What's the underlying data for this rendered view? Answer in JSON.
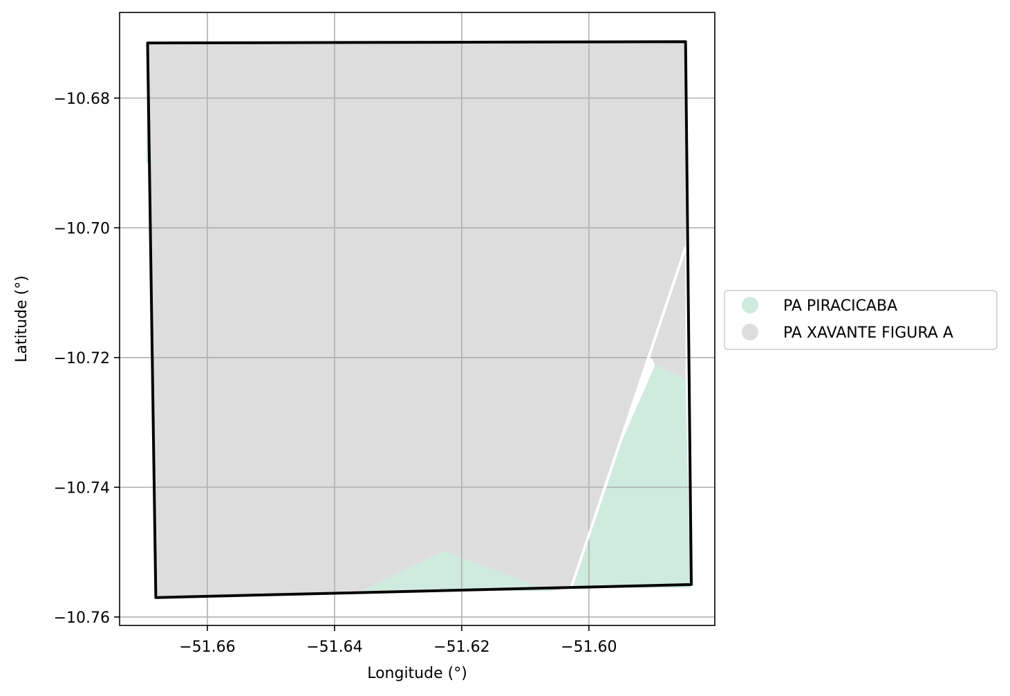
{
  "chart_data": {
    "type": "map",
    "title": "",
    "xlabel": "Longitude (°)",
    "ylabel": "Latitude (°)",
    "xlim": [
      -51.6738,
      -51.5802
    ],
    "ylim": [
      -10.7613,
      -10.6668
    ],
    "xticks": [
      -51.66,
      -51.64,
      -51.62,
      -51.6
    ],
    "yticks": [
      -10.68,
      -10.7,
      -10.72,
      -10.74,
      -10.76
    ],
    "xtick_labels": [
      "−51.66",
      "−51.64",
      "−51.62",
      "−51.60"
    ],
    "ytick_labels": [
      "−10.68",
      "−10.70",
      "−10.72",
      "−10.74",
      "−10.76"
    ],
    "grid": true,
    "legend_position": "center-right outside",
    "series": [
      {
        "name": "PA PIRACICABA",
        "color": "#cfeadf",
        "polygons": [
          [
            [
              -51.6694,
              -10.6715
            ],
            [
              -51.6683,
              -10.6715
            ],
            [
              -51.6684,
              -10.69
            ],
            [
              -51.6696,
              -10.69
            ]
          ],
          [
            [
              -51.5896,
              -10.7212
            ],
            [
              -51.5848,
              -10.7233
            ],
            [
              -51.584,
              -10.7555
            ],
            [
              -51.6028,
              -10.7555
            ],
            [
              -51.6016,
              -10.748
            ]
          ],
          [
            [
              -51.6358,
              -10.756
            ],
            [
              -51.6228,
              -10.7498
            ],
            [
              -51.606,
              -10.756
            ]
          ]
        ]
      },
      {
        "name": "PA XAVANTE FIGURA A",
        "color": "#dddddd",
        "polygons": [
          [
            [
              -51.6694,
              -10.6715
            ],
            [
              -51.5848,
              -10.6713
            ],
            [
              -51.5848,
              -10.703
            ],
            [
              -51.6028,
              -10.7555
            ],
            [
              -51.606,
              -10.756
            ],
            [
              -51.6228,
              -10.7498
            ],
            [
              -51.6358,
              -10.756
            ],
            [
              -51.6681,
              -10.757
            ]
          ],
          [
            [
              -51.5848,
              -10.703
            ],
            [
              -51.5848,
              -10.7233
            ],
            [
              -51.5896,
              -10.7212
            ],
            [
              -51.5916,
              -10.717
            ]
          ]
        ]
      }
    ],
    "boundary": {
      "color": "#000000",
      "coords": [
        [
          -51.6694,
          -10.6715
        ],
        [
          -51.5848,
          -10.6713
        ],
        [
          -51.5839,
          -10.755
        ],
        [
          -51.6681,
          -10.757
        ]
      ]
    },
    "white_line": {
      "color": "#ffffff",
      "coords": [
        [
          -51.6028,
          -10.7555
        ],
        [
          -51.5848,
          -10.703
        ]
      ]
    }
  }
}
